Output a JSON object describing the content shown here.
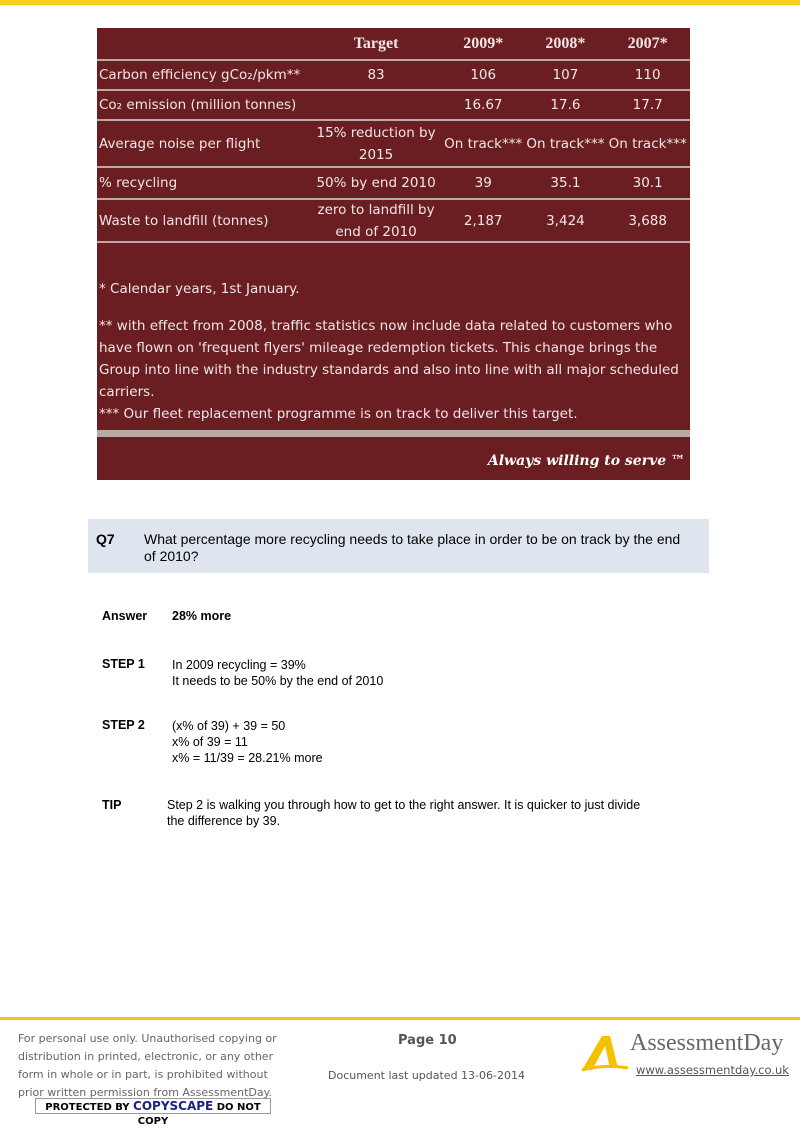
{
  "table": {
    "headers": [
      "",
      "Target",
      "2009*",
      "2008*",
      "2007*"
    ],
    "rows": [
      [
        "Carbon efficiency gCo₂/pkm**",
        "83",
        "106",
        "107",
        "110"
      ],
      [
        "Co₂ emission (million tonnes)",
        "",
        "16.67",
        "17.6",
        "17.7"
      ],
      [
        "Average noise per flight",
        "15% reduction by 2015",
        "On track***",
        "On track***",
        "On track***"
      ],
      [
        "% recycling",
        "50% by end 2010",
        "39",
        "35.1",
        "30.1"
      ],
      [
        "Waste to landfill (tonnes)",
        "zero to landfill by end of 2010",
        "2,187",
        "3,424",
        "3,688"
      ]
    ],
    "notes": [
      "* Calendar years, 1st January.",
      "** with effect from 2008, traffic statistics now include data related to customers who have flown on 'frequent flyers' mileage redemption tickets.  This change brings the Group into line with the industry standards and also into line with all major scheduled carriers.",
      "*** Our fleet replacement programme is on track to deliver this target."
    ],
    "slogan": "Always willing to serve ™"
  },
  "question": {
    "number": "Q7",
    "text": "What percentage more recycling needs to take place in order to be on track by the end of 2010?"
  },
  "answer": {
    "label": "Answer",
    "value": "28% more"
  },
  "steps": [
    {
      "label": "STEP 1",
      "lines": [
        "In 2009 recycling = 39%",
        "It needs to be 50% by the end of 2010"
      ]
    },
    {
      "label": "STEP 2",
      "lines": [
        "(x% of 39) + 39 = 50",
        "x% of 39 = 11",
        "x% = 11/39 = 28.21% more"
      ]
    }
  ],
  "tip": {
    "label": "TIP",
    "text": "Step 2 is walking you through how to get to the right answer.  It is quicker to just divide the difference by 39."
  },
  "footer": {
    "disclaimer": [
      "For personal use only. Unauthorised copying or",
      "distribution in printed, electronic, or any other",
      "form in whole or in part, is prohibited without",
      "prior written permission from AssessmentDay."
    ],
    "copyscape": [
      "PROTECTED BY",
      "COPYSCAPE",
      "DO NOT COPY"
    ],
    "page": "Page 10",
    "updated": "Document last updated 13-06-2014",
    "brand": "AssessmentDay",
    "url": "www.assessmentday.co.uk"
  }
}
